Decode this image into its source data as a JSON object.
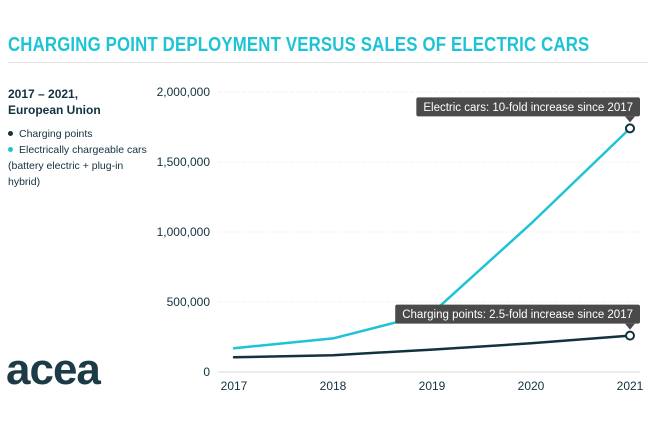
{
  "title": "CHARGING POINT DEPLOYMENT VERSUS SALES OF ELECTRIC CARS",
  "subtitle_line1": "2017 – 2021,",
  "subtitle_line2": "European Union",
  "legend": {
    "charging": "Charging points",
    "cars": "Electrically chargeable cars",
    "cars_note": "(battery electric + plug-in hybrid)"
  },
  "logo": "acea",
  "colors": {
    "cars": "#1ec3d4",
    "charging": "#123240",
    "callout": "#4a4a4a",
    "title": "#1ec3d4"
  },
  "chart_data": {
    "type": "line",
    "title": "CHARGING POINT DEPLOYMENT VERSUS SALES OF ELECTRIC CARS",
    "x": [
      "2017",
      "2018",
      "2019",
      "2020",
      "2021"
    ],
    "ylim": [
      0,
      2000000
    ],
    "yticks": [
      0,
      500000,
      1000000,
      1500000,
      2000000
    ],
    "ytick_labels": [
      "0",
      "500,000",
      "1,000,000",
      "1,500,000",
      "2,000,000"
    ],
    "grid": true,
    "series": [
      {
        "name": "Electrically chargeable cars",
        "values": [
          170000,
          240000,
          420000,
          1060000,
          1740000
        ]
      },
      {
        "name": "Charging points",
        "values": [
          105000,
          120000,
          160000,
          205000,
          260000
        ]
      }
    ],
    "annotations": [
      {
        "series": "Electrically chargeable cars",
        "text": "Electric cars: 10-fold increase since 2017"
      },
      {
        "series": "Charging points",
        "text": "Charging points: 2.5-fold increase since 2017"
      }
    ]
  }
}
